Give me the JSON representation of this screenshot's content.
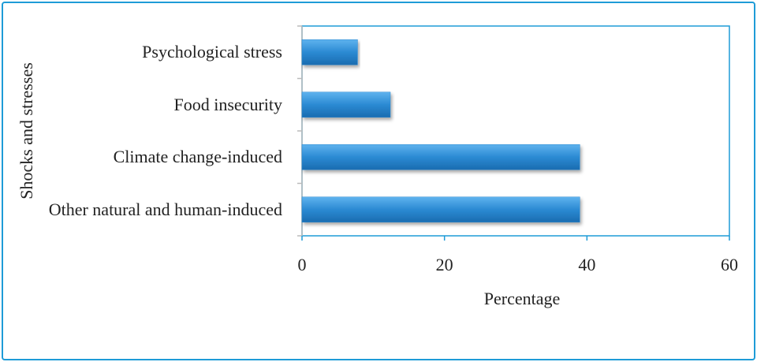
{
  "chart_data": {
    "type": "bar",
    "orientation": "horizontal",
    "categories": [
      "Psychological stress",
      "Food insecurity",
      "Climate change-induced",
      "Other natural and human-induced"
    ],
    "values": [
      7.8,
      12.4,
      39,
      39
    ],
    "color": "#2b8ad3",
    "xlim": [
      0,
      60
    ],
    "xticks": [
      0,
      20,
      40,
      60
    ],
    "xlabel": "Percentage",
    "ylabel": "Shocks and stresses"
  }
}
